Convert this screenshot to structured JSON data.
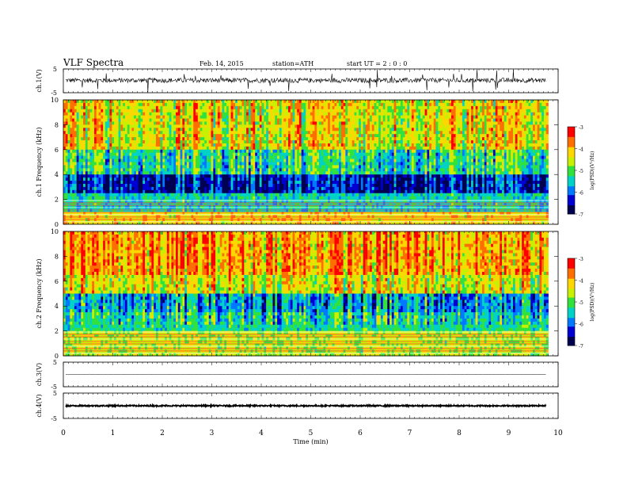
{
  "header": {
    "title": "VLF  Spectra",
    "date": "Feb. 14, 2015",
    "station": "station=ATH",
    "start": "start  UT  =   2  : 0  : 0"
  },
  "colorbar": {
    "label": "log(PSD)(V²/Hz)",
    "ticks": [
      "-3",
      "-4",
      "-5",
      "-6",
      "-7"
    ],
    "colors": [
      "#ff0000",
      "#ff6e00",
      "#ffd700",
      "#c8f000",
      "#32e23c",
      "#00d2c8",
      "#0078ff",
      "#0000d2",
      "#000050"
    ]
  },
  "chart_data": [
    {
      "id": "ch1-waveform",
      "type": "line",
      "ylabel": "ch.1(V)",
      "ylim": [
        -5,
        5
      ],
      "yticks": [
        "5",
        "-5"
      ],
      "description_values": "noisy waveform around 0 V with spikes reaching about -5 V",
      "baseline": 0.2,
      "amplitude": 1.0
    },
    {
      "id": "ch1-spectrogram",
      "type": "heatmap",
      "ylabel": "ch.1 Frequency (kHz)",
      "ylim": [
        0,
        10
      ],
      "yticks": [
        "0",
        "2",
        "4",
        "6",
        "8",
        "10"
      ],
      "xlim": [
        0,
        10
      ],
      "zlim": [
        -7,
        -3
      ],
      "bands_khz": [
        {
          "from": 0,
          "to": 1.0,
          "level": -4.2
        },
        {
          "from": 1.0,
          "to": 2.5,
          "level": -5.4
        },
        {
          "from": 2.5,
          "to": 4.0,
          "level": -6.4
        },
        {
          "from": 4.0,
          "to": 6.0,
          "level": -5.2
        },
        {
          "from": 6.0,
          "to": 10.0,
          "level": -4.3
        }
      ]
    },
    {
      "id": "ch2-spectrogram",
      "type": "heatmap",
      "ylabel": "ch.2 Frequency (kHz)",
      "ylim": [
        0,
        10
      ],
      "yticks": [
        "0",
        "2",
        "4",
        "6",
        "8",
        "10"
      ],
      "xlim": [
        0,
        10
      ],
      "zlim": [
        -7,
        -3
      ],
      "bands_khz": [
        {
          "from": 0,
          "to": 2.0,
          "level": -4.6
        },
        {
          "from": 2.0,
          "to": 3.5,
          "level": -5.3
        },
        {
          "from": 3.5,
          "to": 5.0,
          "level": -5.7
        },
        {
          "from": 5.0,
          "to": 6.5,
          "level": -4.4
        },
        {
          "from": 6.5,
          "to": 10.0,
          "level": -3.9
        }
      ]
    },
    {
      "id": "ch3-waveform",
      "type": "line",
      "ylabel": "ch.3(V)",
      "ylim": [
        -5,
        5
      ],
      "yticks": [
        "5",
        "-5"
      ],
      "baseline": 0.0,
      "amplitude": 0.1
    },
    {
      "id": "ch4-waveform",
      "type": "line",
      "ylabel": "ch.4(V)",
      "ylim": [
        -5,
        5
      ],
      "yticks": [
        "5",
        "-5"
      ],
      "baseline": 0.0,
      "amplitude": 0.25
    }
  ],
  "xaxis": {
    "label": "Time  (min)",
    "ticks": [
      "0",
      "1",
      "2",
      "3",
      "4",
      "5",
      "6",
      "7",
      "8",
      "9",
      "10"
    ],
    "xlim": [
      0,
      10
    ],
    "data_end": 9.8
  }
}
